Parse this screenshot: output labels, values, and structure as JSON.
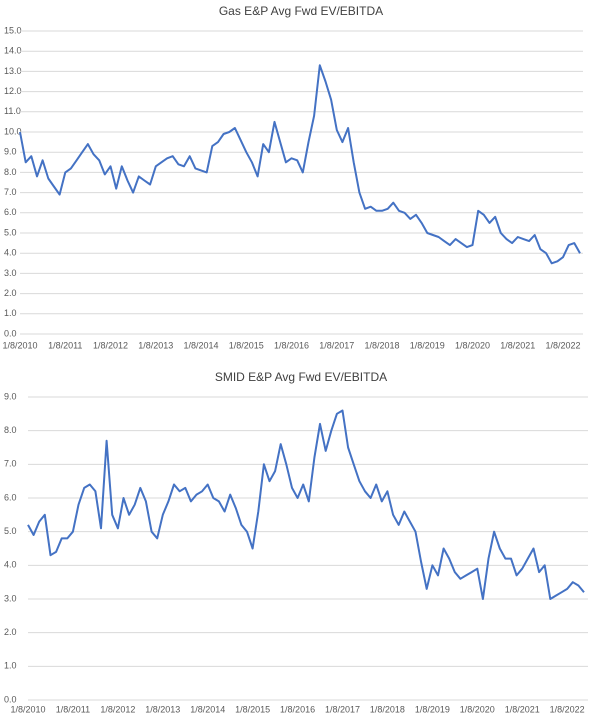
{
  "chart_data": [
    {
      "type": "line",
      "title": "Gas E&P Avg Fwd EV/EBITDA",
      "categories": [
        "1/8/2010",
        null,
        null,
        null,
        null,
        null,
        null,
        null,
        "1/8/2011",
        null,
        null,
        null,
        null,
        null,
        null,
        null,
        "1/8/2012",
        null,
        null,
        null,
        null,
        null,
        null,
        null,
        "1/8/2013",
        null,
        null,
        null,
        null,
        null,
        null,
        null,
        "1/8/2014",
        null,
        null,
        null,
        null,
        null,
        null,
        null,
        "1/8/2015",
        null,
        null,
        null,
        null,
        null,
        null,
        null,
        "1/8/2016",
        null,
        null,
        null,
        null,
        null,
        null,
        null,
        "1/8/2017",
        null,
        null,
        null,
        null,
        null,
        null,
        null,
        "1/8/2018",
        null,
        null,
        null,
        null,
        null,
        null,
        null,
        "1/8/2019",
        null,
        null,
        null,
        null,
        null,
        null,
        null,
        "1/8/2020",
        null,
        null,
        null,
        null,
        null,
        null,
        null,
        "1/8/2021",
        null,
        null,
        null,
        null,
        null,
        null,
        null,
        "1/8/2022",
        null,
        null,
        null
      ],
      "series": [
        {
          "color": "#4472c4",
          "values": [
            10.0,
            8.5,
            8.8,
            7.8,
            8.6,
            7.7,
            7.3,
            6.9,
            8.0,
            8.2,
            8.6,
            9.0,
            9.4,
            8.9,
            8.6,
            7.9,
            8.3,
            7.2,
            8.3,
            7.6,
            7.0,
            7.8,
            7.6,
            7.4,
            8.3,
            8.5,
            8.7,
            8.8,
            8.4,
            8.3,
            8.8,
            8.2,
            8.1,
            8.0,
            9.3,
            9.5,
            9.9,
            10.0,
            10.2,
            9.6,
            9.0,
            8.5,
            7.8,
            9.4,
            9.0,
            10.5,
            9.5,
            8.5,
            8.7,
            8.6,
            8.0,
            9.5,
            10.8,
            13.3,
            12.5,
            11.6,
            10.1,
            9.5,
            10.2,
            8.5,
            7.0,
            6.2,
            6.3,
            6.1,
            6.1,
            6.2,
            6.5,
            6.1,
            6.0,
            5.7,
            5.9,
            5.5,
            5.0,
            4.9,
            4.8,
            4.6,
            4.4,
            4.7,
            4.5,
            4.3,
            4.4,
            6.1,
            5.9,
            5.5,
            5.8,
            5.0,
            4.7,
            4.5,
            4.8,
            4.7,
            4.6,
            4.9,
            4.2,
            4.0,
            3.5,
            3.6,
            3.8,
            4.4,
            4.5,
            4.0
          ]
        }
      ],
      "ylim": [
        0,
        15
      ],
      "yticks": [
        {
          "value": 0,
          "label": "0.0"
        },
        {
          "value": 1,
          "label": "1.0"
        },
        {
          "value": 2,
          "label": "2.0"
        },
        {
          "value": 3,
          "label": "3.0"
        },
        {
          "value": 4,
          "label": "4.0"
        },
        {
          "value": 5,
          "label": "5.0"
        },
        {
          "value": 6,
          "label": "6.0"
        },
        {
          "value": 7,
          "label": "7.0"
        },
        {
          "value": 8,
          "label": "8.0"
        },
        {
          "value": 9,
          "label": "9.0"
        },
        {
          "value": 10,
          "label": "10.0"
        },
        {
          "value": 11,
          "label": "11.0"
        },
        {
          "value": 12,
          "label": "12.0"
        },
        {
          "value": 13,
          "label": "13.0"
        },
        {
          "value": 14,
          "label": "14.0"
        },
        {
          "value": 15,
          "label": "15.0"
        }
      ],
      "grid": true
    },
    {
      "type": "line",
      "title": "SMID E&P Avg Fwd EV/EBITDA",
      "categories": [
        "1/8/2010",
        null,
        null,
        null,
        null,
        null,
        null,
        null,
        "1/8/2011",
        null,
        null,
        null,
        null,
        null,
        null,
        null,
        "1/8/2012",
        null,
        null,
        null,
        null,
        null,
        null,
        null,
        "1/8/2013",
        null,
        null,
        null,
        null,
        null,
        null,
        null,
        "1/8/2014",
        null,
        null,
        null,
        null,
        null,
        null,
        null,
        "1/8/2015",
        null,
        null,
        null,
        null,
        null,
        null,
        null,
        "1/8/2016",
        null,
        null,
        null,
        null,
        null,
        null,
        null,
        "1/8/2017",
        null,
        null,
        null,
        null,
        null,
        null,
        null,
        "1/8/2018",
        null,
        null,
        null,
        null,
        null,
        null,
        null,
        "1/8/2019",
        null,
        null,
        null,
        null,
        null,
        null,
        null,
        "1/8/2020",
        null,
        null,
        null,
        null,
        null,
        null,
        null,
        "1/8/2021",
        null,
        null,
        null,
        null,
        null,
        null,
        null,
        "1/8/2022",
        null,
        null,
        null
      ],
      "series": [
        {
          "color": "#4472c4",
          "values": [
            5.2,
            4.9,
            5.3,
            5.5,
            4.3,
            4.4,
            4.8,
            4.8,
            5.0,
            5.8,
            6.3,
            6.4,
            6.2,
            5.1,
            7.7,
            5.5,
            5.1,
            6.0,
            5.5,
            5.8,
            6.3,
            5.9,
            5.0,
            4.8,
            5.5,
            5.9,
            6.4,
            6.2,
            6.3,
            5.9,
            6.1,
            6.2,
            6.4,
            6.0,
            5.9,
            5.6,
            6.1,
            5.7,
            5.2,
            5.0,
            4.5,
            5.6,
            7.0,
            6.5,
            6.8,
            7.6,
            7.0,
            6.3,
            6.0,
            6.4,
            5.9,
            7.2,
            8.2,
            7.4,
            8.0,
            8.5,
            8.6,
            7.5,
            7.0,
            6.5,
            6.2,
            6.0,
            6.4,
            5.9,
            6.2,
            5.5,
            5.2,
            5.6,
            5.3,
            5.0,
            4.1,
            3.3,
            4.0,
            3.7,
            4.5,
            4.2,
            3.8,
            3.6,
            3.7,
            3.8,
            3.9,
            3.0,
            4.2,
            5.0,
            4.5,
            4.2,
            4.2,
            3.7,
            3.9,
            4.2,
            4.5,
            3.8,
            4.0,
            3.0,
            3.1,
            3.2,
            3.3,
            3.5,
            3.4,
            3.2
          ]
        }
      ],
      "ylim": [
        0,
        9
      ],
      "yticks": [
        {
          "value": 0,
          "label": "0.0"
        },
        {
          "value": 1,
          "label": "1.0"
        },
        {
          "value": 2,
          "label": "2.0"
        },
        {
          "value": 3,
          "label": "3.0"
        },
        {
          "value": 4,
          "label": "4.0"
        },
        {
          "value": 5,
          "label": "5.0"
        },
        {
          "value": 6,
          "label": "6.0"
        },
        {
          "value": 7,
          "label": "7.0"
        },
        {
          "value": 8,
          "label": "8.0"
        },
        {
          "value": 9,
          "label": "9.0"
        }
      ],
      "grid": true
    }
  ]
}
